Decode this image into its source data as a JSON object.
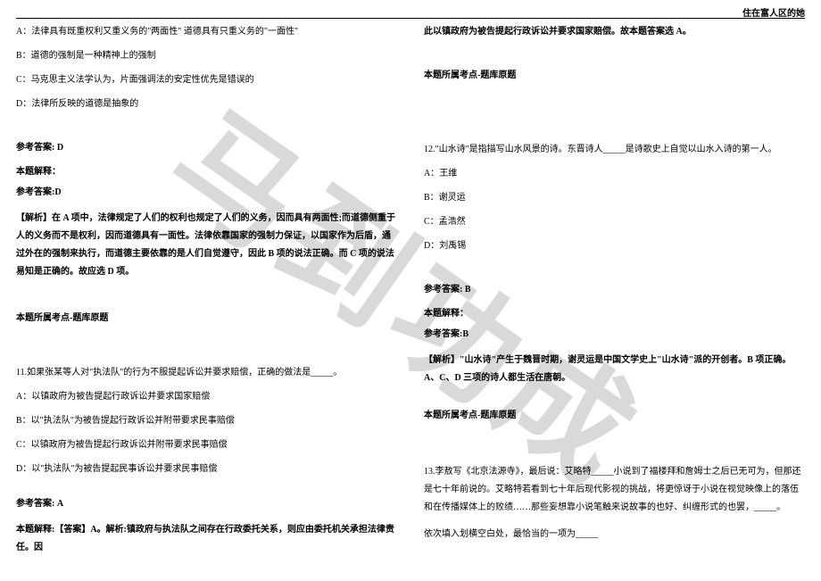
{
  "header": {
    "right_text": "住在富人区的她"
  },
  "watermark": {
    "text": "马到功成",
    "color": "#d9d9d9"
  },
  "left": {
    "opt_a": "A：法律具有既重权利又重义务的\"两面性\"  道德具有只重义务的\"一面性\"",
    "opt_b": "B：道德的强制是一种精神上的强制",
    "opt_c": "C：马克思主义法学认为，片面强调法的安定性优先是错误的",
    "opt_d": "D：法律所反映的道德是抽象的",
    "ref_ans_label": "参考答案: D",
    "solution_label": "本题解释：",
    "ref_ans_label2": "参考答案:D",
    "analysis": "【解析】在 A 项中，法律规定了人们的权利也规定了人们的义务，因而具有两面性;而道德侧重于人的义务而不是权利，因而道德具有一面性。法律依靠国家的强制力保证，以国家作为后盾，通过外在的强制来执行，而道德主要依靠的是人们自觉遵守，因此 B 项的说法正确。而 C 项的说法易知是正确的。故应选 D 项。",
    "topic_label": "本题所属考点-题库原题",
    "q11": "11.如果张某等人对\"执法队\"的行为不服提起诉讼并要求赔偿，正确的做法是_____。",
    "q11_a": "A：以镇政府为被告提起行政诉讼并要求国家赔偿",
    "q11_b": "B：以\"执法队\"为被告提起行政诉讼并附带要求民事赔偿",
    "q11_c": "C：以镇政府为被告提起行政诉讼并附带要求民事赔偿",
    "q11_d": "D：以\"执法队\"为被告提起民事诉讼并要求民事赔偿",
    "q11_ans": "参考答案: A",
    "q11_expl": "本题解释:【答案】A。解析:镇政府与执法队之间存在行政委托关系，则应由委托机关承担法律责任。因"
  },
  "right": {
    "cont": "此以镇政府为被告提起行政诉讼并要求国家赔偿。故本题答案选 A。",
    "topic_label": "本题所属考点-题库原题",
    "q12": "12.\"山水诗\"是指描写山水风景的诗。东晋诗人_____是诗歌史上自觉以山水入诗的第一人。",
    "q12_a": "A：王维",
    "q12_b": "B：谢灵运",
    "q12_c": "C：孟浩然",
    "q12_d": "D：刘禹锡",
    "q12_ans": "参考答案: B",
    "q12_sol_label": "本题解释：",
    "q12_ans2": "参考答案:B",
    "q12_analysis": "【解析】\"山水诗\"产生于魏晋时期，谢灵运是中国文学史上\"山水诗\"派的开创者。B 项正确。A、C、D 三项的诗人都生活在唐朝。",
    "q12_topic": "本题所属考点-题库原题",
    "q13": "13.李敖写《北京法源寺》，最后说：艾略特_____小说到了福楼拜和詹姆士之后已无可为，但那还是七十年前说的。艾略特若看到七十年后现代影视的挑战，将更惊讶于小说在视觉映像上的落伍和在传播媒体上的败绩……那些妄想靠小说笔触来说故事的也好、纠缠形式的也罢，_____。",
    "q13_tail": "依次填入划横空白处，最恰当的一项为_____"
  }
}
